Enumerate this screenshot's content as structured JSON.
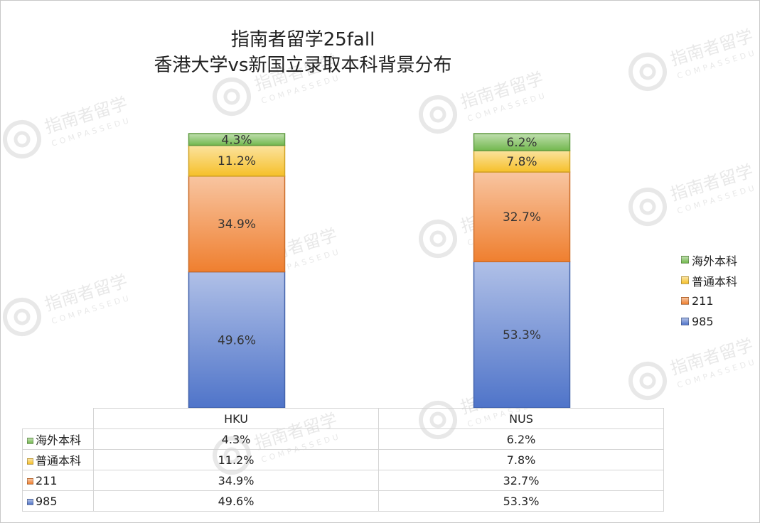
{
  "chart_data": {
    "type": "bar",
    "stacked": true,
    "title": "指南者留学25fall",
    "subtitle": "香港大学vs新国立录取本科背景分布",
    "categories": [
      "HKU",
      "NUS"
    ],
    "series": [
      {
        "name": "985",
        "values": [
          49.6,
          53.3
        ],
        "labels": [
          "49.6%",
          "53.3%"
        ],
        "color": "#4f74c9"
      },
      {
        "name": "211",
        "values": [
          34.9,
          32.7
        ],
        "labels": [
          "34.9%",
          "32.7%"
        ],
        "color": "#ef7f2f"
      },
      {
        "name": "普通本科",
        "values": [
          11.2,
          7.8
        ],
        "labels": [
          "11.2%",
          "7.8%"
        ],
        "color": "#f6c02a"
      },
      {
        "name": "海外本科",
        "values": [
          4.3,
          6.2
        ],
        "labels": [
          "4.3%",
          "6.2%"
        ],
        "color": "#72b84e"
      }
    ],
    "legend_position": "right",
    "data_table": true,
    "ylim": [
      0,
      100
    ]
  },
  "watermark": {
    "text": "指南者留学",
    "subtext": "COMPASSEDU",
    "icon": "compass-logo-icon"
  }
}
